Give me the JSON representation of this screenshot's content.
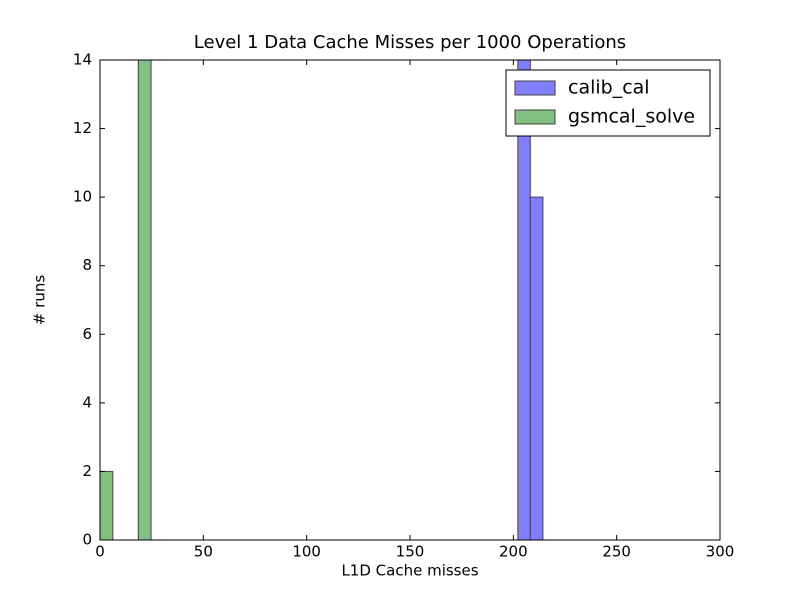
{
  "chart_data": {
    "type": "histogram",
    "title": "Level 1 Data Cache Misses per 1000 Operations",
    "x_label": "L1D Cache misses",
    "y_label": "# runs",
    "series": [
      {
        "name": "calib_cal",
        "color": "#8080ff",
        "bins": [
          202.2,
          208.2,
          214.3
        ],
        "values": [
          15,
          10
        ]
      },
      {
        "name": "gsmcal_solve",
        "color": "#80c080",
        "bins": [
          0,
          6.2,
          12.4,
          18.5,
          24.7
        ],
        "values": [
          2,
          0,
          0,
          14
        ]
      }
    ],
    "xlim": [
      0,
      300
    ],
    "xticks": [
      0,
      50,
      100,
      150,
      200,
      250,
      300
    ],
    "ylim": [
      0,
      14
    ],
    "yticks": [
      0,
      2,
      4,
      6,
      8,
      10,
      12,
      14
    ],
    "legend": "upper right"
  }
}
